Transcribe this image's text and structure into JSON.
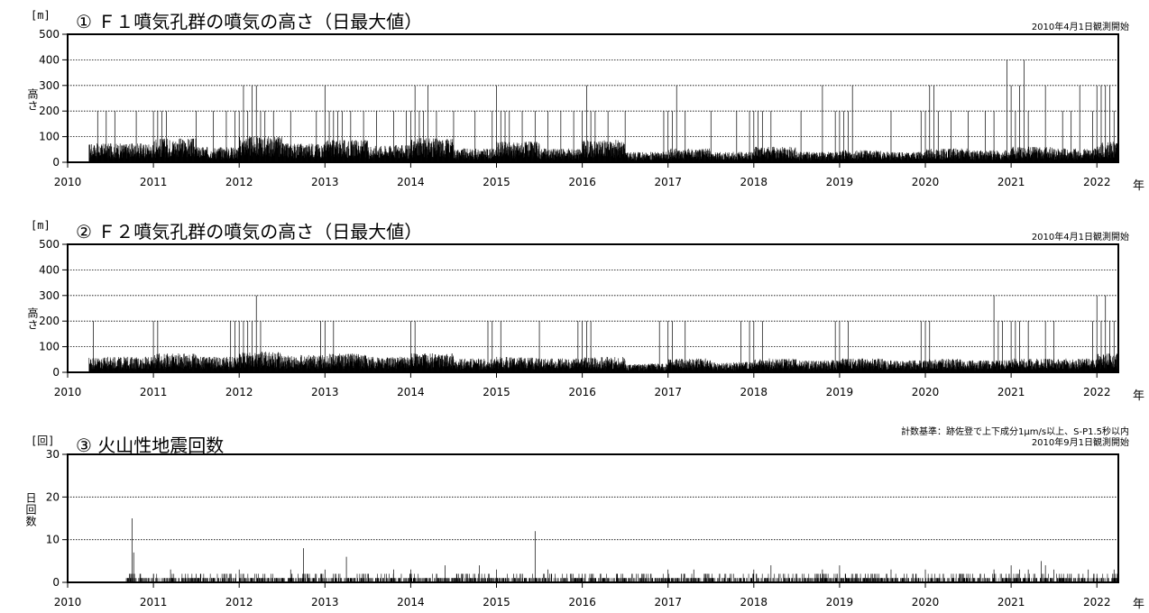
{
  "panels": [
    {
      "unit": "[m]",
      "title": "① Ｆ１噴気孔群の噴気の高さ（日最大値）",
      "notes": [
        "2010年4月1日観測開始"
      ],
      "ylabel": "高さ",
      "year_label": "年"
    },
    {
      "unit": "[m]",
      "title": "② Ｆ２噴気孔群の噴気の高さ（日最大値）",
      "notes": [
        "2010年4月1日観測開始"
      ],
      "ylabel": "高さ",
      "year_label": "年"
    },
    {
      "unit": "[回]",
      "title": "③ 火山性地震回数",
      "notes": [
        "計数基準：跡佐登で上下成分1μm/s以上、S-P1.5秒以内",
        "2010年9月1日観測開始"
      ],
      "ylabel": "日回数",
      "year_label": "年"
    }
  ],
  "chart_data": [
    {
      "type": "bar",
      "title": "① Ｆ１噴気孔群の噴気の高さ（日最大値）",
      "ylabel": "高さ",
      "xlabel": "年",
      "unit": "[m]",
      "xlim": [
        2010.0,
        2022.25
      ],
      "ylim": [
        0,
        500
      ],
      "yticks": [
        0,
        100,
        200,
        300,
        400,
        500
      ],
      "xticks": [
        2010,
        2011,
        2012,
        2013,
        2014,
        2015,
        2016,
        2017,
        2018,
        2019,
        2020,
        2021,
        2022
      ],
      "grid": "horizontal-dotted",
      "observation_start": 2010.25,
      "color": "#000000",
      "period_base": [
        [
          2010.25,
          2011.0,
          55
        ],
        [
          2011.0,
          2011.5,
          70
        ],
        [
          2011.5,
          2012.0,
          45
        ],
        [
          2012.0,
          2012.5,
          75
        ],
        [
          2012.5,
          2013.0,
          55
        ],
        [
          2013.0,
          2013.5,
          65
        ],
        [
          2013.5,
          2014.0,
          50
        ],
        [
          2014.0,
          2014.5,
          70
        ],
        [
          2014.5,
          2015.0,
          40
        ],
        [
          2015.0,
          2015.5,
          60
        ],
        [
          2015.5,
          2016.0,
          40
        ],
        [
          2016.0,
          2016.5,
          65
        ],
        [
          2016.5,
          2017.0,
          30
        ],
        [
          2017.0,
          2017.5,
          40
        ],
        [
          2017.5,
          2018.0,
          30
        ],
        [
          2018.0,
          2018.5,
          45
        ],
        [
          2018.5,
          2019.0,
          30
        ],
        [
          2019.0,
          2019.5,
          35
        ],
        [
          2019.5,
          2020.0,
          30
        ],
        [
          2020.0,
          2020.5,
          40
        ],
        [
          2020.5,
          2021.0,
          35
        ],
        [
          2021.0,
          2021.5,
          45
        ],
        [
          2021.5,
          2022.0,
          40
        ],
        [
          2022.0,
          2022.25,
          60
        ]
      ],
      "peaks": [
        [
          2010.35,
          200
        ],
        [
          2010.45,
          200
        ],
        [
          2010.55,
          200
        ],
        [
          2010.8,
          200
        ],
        [
          2011.0,
          200
        ],
        [
          2011.05,
          200
        ],
        [
          2011.1,
          200
        ],
        [
          2011.15,
          200
        ],
        [
          2011.5,
          200
        ],
        [
          2011.7,
          200
        ],
        [
          2011.85,
          200
        ],
        [
          2011.95,
          200
        ],
        [
          2012.0,
          200
        ],
        [
          2012.05,
          300
        ],
        [
          2012.1,
          200
        ],
        [
          2012.15,
          300
        ],
        [
          2012.2,
          300
        ],
        [
          2012.25,
          200
        ],
        [
          2012.3,
          200
        ],
        [
          2012.4,
          200
        ],
        [
          2012.6,
          200
        ],
        [
          2012.9,
          200
        ],
        [
          2013.0,
          300
        ],
        [
          2013.05,
          200
        ],
        [
          2013.1,
          200
        ],
        [
          2013.15,
          200
        ],
        [
          2013.2,
          200
        ],
        [
          2013.3,
          200
        ],
        [
          2013.45,
          200
        ],
        [
          2013.6,
          200
        ],
        [
          2013.8,
          200
        ],
        [
          2013.95,
          200
        ],
        [
          2014.0,
          200
        ],
        [
          2014.05,
          300
        ],
        [
          2014.1,
          200
        ],
        [
          2014.15,
          200
        ],
        [
          2014.2,
          300
        ],
        [
          2014.3,
          200
        ],
        [
          2014.5,
          200
        ],
        [
          2014.75,
          200
        ],
        [
          2014.95,
          200
        ],
        [
          2015.0,
          300
        ],
        [
          2015.05,
          200
        ],
        [
          2015.1,
          200
        ],
        [
          2015.15,
          200
        ],
        [
          2015.3,
          200
        ],
        [
          2015.45,
          200
        ],
        [
          2015.6,
          200
        ],
        [
          2015.75,
          200
        ],
        [
          2015.9,
          200
        ],
        [
          2016.0,
          200
        ],
        [
          2016.05,
          300
        ],
        [
          2016.1,
          200
        ],
        [
          2016.15,
          200
        ],
        [
          2016.3,
          200
        ],
        [
          2016.5,
          200
        ],
        [
          2016.95,
          200
        ],
        [
          2017.0,
          200
        ],
        [
          2017.05,
          200
        ],
        [
          2017.1,
          300
        ],
        [
          2017.2,
          200
        ],
        [
          2017.5,
          200
        ],
        [
          2017.8,
          200
        ],
        [
          2017.95,
          200
        ],
        [
          2018.0,
          200
        ],
        [
          2018.05,
          200
        ],
        [
          2018.1,
          200
        ],
        [
          2018.2,
          200
        ],
        [
          2018.55,
          200
        ],
        [
          2018.8,
          300
        ],
        [
          2018.95,
          200
        ],
        [
          2019.0,
          200
        ],
        [
          2019.05,
          200
        ],
        [
          2019.1,
          200
        ],
        [
          2019.15,
          300
        ],
        [
          2019.6,
          200
        ],
        [
          2019.95,
          200
        ],
        [
          2020.0,
          200
        ],
        [
          2020.05,
          300
        ],
        [
          2020.1,
          300
        ],
        [
          2020.15,
          200
        ],
        [
          2020.3,
          200
        ],
        [
          2020.5,
          200
        ],
        [
          2020.7,
          200
        ],
        [
          2020.8,
          200
        ],
        [
          2020.95,
          400
        ],
        [
          2021.0,
          300
        ],
        [
          2021.05,
          200
        ],
        [
          2021.1,
          300
        ],
        [
          2021.15,
          400
        ],
        [
          2021.2,
          200
        ],
        [
          2021.4,
          300
        ],
        [
          2021.6,
          200
        ],
        [
          2021.7,
          200
        ],
        [
          2021.8,
          300
        ],
        [
          2021.95,
          200
        ],
        [
          2022.0,
          300
        ],
        [
          2022.05,
          300
        ],
        [
          2022.1,
          300
        ],
        [
          2022.15,
          300
        ],
        [
          2022.2,
          200
        ]
      ]
    },
    {
      "type": "bar",
      "title": "② Ｆ２噴気孔群の噴気の高さ（日最大値）",
      "ylabel": "高さ",
      "xlabel": "年",
      "unit": "[m]",
      "xlim": [
        2010.0,
        2022.25
      ],
      "ylim": [
        0,
        500
      ],
      "yticks": [
        0,
        100,
        200,
        300,
        400,
        500
      ],
      "xticks": [
        2010,
        2011,
        2012,
        2013,
        2014,
        2015,
        2016,
        2017,
        2018,
        2019,
        2020,
        2021,
        2022
      ],
      "grid": "horizontal-dotted",
      "observation_start": 2010.25,
      "color": "#000000",
      "period_base": [
        [
          2010.25,
          2011.0,
          45
        ],
        [
          2011.0,
          2011.5,
          55
        ],
        [
          2011.5,
          2012.0,
          45
        ],
        [
          2012.0,
          2012.5,
          60
        ],
        [
          2012.5,
          2013.0,
          50
        ],
        [
          2013.0,
          2013.5,
          55
        ],
        [
          2013.5,
          2014.0,
          45
        ],
        [
          2014.0,
          2014.5,
          55
        ],
        [
          2014.5,
          2015.0,
          40
        ],
        [
          2015.0,
          2015.5,
          45
        ],
        [
          2015.5,
          2016.0,
          40
        ],
        [
          2016.0,
          2016.5,
          45
        ],
        [
          2016.5,
          2017.0,
          25
        ],
        [
          2017.0,
          2017.5,
          40
        ],
        [
          2017.5,
          2018.0,
          30
        ],
        [
          2018.0,
          2018.5,
          40
        ],
        [
          2018.5,
          2019.0,
          35
        ],
        [
          2019.0,
          2019.5,
          40
        ],
        [
          2019.5,
          2020.0,
          35
        ],
        [
          2020.0,
          2020.5,
          40
        ],
        [
          2020.5,
          2021.0,
          35
        ],
        [
          2021.0,
          2021.5,
          40
        ],
        [
          2021.5,
          2022.0,
          40
        ],
        [
          2022.0,
          2022.25,
          55
        ]
      ],
      "peaks": [
        [
          2010.3,
          200
        ],
        [
          2011.0,
          200
        ],
        [
          2011.05,
          200
        ],
        [
          2011.9,
          200
        ],
        [
          2011.95,
          200
        ],
        [
          2012.0,
          200
        ],
        [
          2012.05,
          200
        ],
        [
          2012.1,
          200
        ],
        [
          2012.15,
          200
        ],
        [
          2012.2,
          300
        ],
        [
          2012.25,
          200
        ],
        [
          2012.95,
          200
        ],
        [
          2013.0,
          200
        ],
        [
          2013.1,
          200
        ],
        [
          2014.0,
          200
        ],
        [
          2014.05,
          200
        ],
        [
          2014.9,
          200
        ],
        [
          2014.95,
          200
        ],
        [
          2015.05,
          200
        ],
        [
          2015.5,
          200
        ],
        [
          2015.95,
          200
        ],
        [
          2016.0,
          200
        ],
        [
          2016.05,
          200
        ],
        [
          2016.1,
          200
        ],
        [
          2016.9,
          200
        ],
        [
          2017.0,
          200
        ],
        [
          2017.05,
          200
        ],
        [
          2017.2,
          200
        ],
        [
          2017.85,
          200
        ],
        [
          2017.95,
          200
        ],
        [
          2018.0,
          200
        ],
        [
          2018.1,
          200
        ],
        [
          2018.95,
          200
        ],
        [
          2019.0,
          200
        ],
        [
          2019.1,
          200
        ],
        [
          2019.95,
          200
        ],
        [
          2020.0,
          200
        ],
        [
          2020.05,
          200
        ],
        [
          2020.8,
          300
        ],
        [
          2020.85,
          200
        ],
        [
          2020.9,
          200
        ],
        [
          2021.0,
          200
        ],
        [
          2021.05,
          200
        ],
        [
          2021.1,
          200
        ],
        [
          2021.2,
          200
        ],
        [
          2021.4,
          200
        ],
        [
          2021.5,
          200
        ],
        [
          2021.95,
          200
        ],
        [
          2022.0,
          300
        ],
        [
          2022.05,
          200
        ],
        [
          2022.1,
          300
        ],
        [
          2022.15,
          200
        ],
        [
          2022.2,
          200
        ]
      ]
    },
    {
      "type": "bar",
      "title": "③ 火山性地震回数",
      "ylabel": "日回数",
      "xlabel": "年",
      "unit": "[回]",
      "xlim": [
        2010.0,
        2022.25
      ],
      "ylim": [
        0,
        30
      ],
      "yticks": [
        0,
        10,
        20,
        30
      ],
      "xticks": [
        2010,
        2011,
        2012,
        2013,
        2014,
        2015,
        2016,
        2017,
        2018,
        2019,
        2020,
        2021,
        2022
      ],
      "grid": "horizontal-dotted",
      "observation_start": 2010.67,
      "color": "#000000",
      "period_base": [
        [
          2010.67,
          2011.0,
          1
        ],
        [
          2011.0,
          2016.0,
          1
        ],
        [
          2016.0,
          2020.0,
          1
        ],
        [
          2020.0,
          2022.25,
          1
        ]
      ],
      "peaks": [
        [
          2010.75,
          15
        ],
        [
          2010.77,
          7
        ],
        [
          2010.72,
          2
        ],
        [
          2011.0,
          2
        ],
        [
          2011.2,
          3
        ],
        [
          2011.5,
          2
        ],
        [
          2011.8,
          2
        ],
        [
          2012.0,
          3
        ],
        [
          2012.3,
          2
        ],
        [
          2012.6,
          3
        ],
        [
          2012.75,
          8
        ],
        [
          2012.9,
          2
        ],
        [
          2013.0,
          3
        ],
        [
          2013.25,
          6
        ],
        [
          2013.5,
          2
        ],
        [
          2013.8,
          3
        ],
        [
          2014.0,
          3
        ],
        [
          2014.3,
          2
        ],
        [
          2014.4,
          4
        ],
        [
          2014.6,
          2
        ],
        [
          2014.8,
          4
        ],
        [
          2015.0,
          3
        ],
        [
          2015.2,
          2
        ],
        [
          2015.45,
          12
        ],
        [
          2015.6,
          3
        ],
        [
          2016.0,
          2
        ],
        [
          2016.4,
          2
        ],
        [
          2016.7,
          2
        ],
        [
          2017.0,
          3
        ],
        [
          2017.3,
          3
        ],
        [
          2017.6,
          2
        ],
        [
          2018.0,
          3
        ],
        [
          2018.2,
          4
        ],
        [
          2018.5,
          2
        ],
        [
          2018.8,
          3
        ],
        [
          2019.0,
          4
        ],
        [
          2019.3,
          2
        ],
        [
          2019.6,
          3
        ],
        [
          2020.0,
          3
        ],
        [
          2020.4,
          2
        ],
        [
          2020.8,
          3
        ],
        [
          2021.0,
          4
        ],
        [
          2021.1,
          3
        ],
        [
          2021.2,
          3
        ],
        [
          2021.35,
          5
        ],
        [
          2021.4,
          4
        ],
        [
          2021.5,
          3
        ],
        [
          2021.7,
          2
        ],
        [
          2021.9,
          3
        ],
        [
          2022.0,
          2
        ],
        [
          2022.2,
          3
        ]
      ]
    }
  ]
}
